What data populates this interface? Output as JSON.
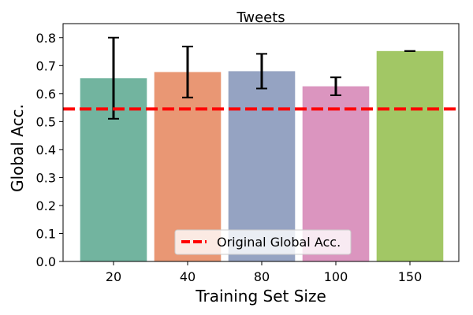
{
  "chart_data": {
    "type": "bar",
    "title": "Tweets",
    "xlabel": "Training Set Size",
    "ylabel": "Global Acc.",
    "categories": [
      "20",
      "40",
      "80",
      "100",
      "150"
    ],
    "values": [
      0.655,
      0.677,
      0.68,
      0.626,
      0.752
    ],
    "error": [
      0.145,
      0.091,
      0.062,
      0.032,
      0.0
    ],
    "colors": [
      "#72b49f",
      "#e99774",
      "#95a3c2",
      "#db95bf",
      "#a2c765"
    ],
    "ylim": [
      0,
      0.85
    ],
    "yticks": [
      "0.0",
      "0.1",
      "0.2",
      "0.3",
      "0.4",
      "0.5",
      "0.6",
      "0.7",
      "0.8"
    ],
    "reference_line": {
      "value": 0.545,
      "color": "#ff0000",
      "label": "Original Global Acc."
    },
    "legend": {
      "placement": "bottom-center",
      "entries": [
        "Original Global Acc."
      ]
    },
    "grid": false
  }
}
